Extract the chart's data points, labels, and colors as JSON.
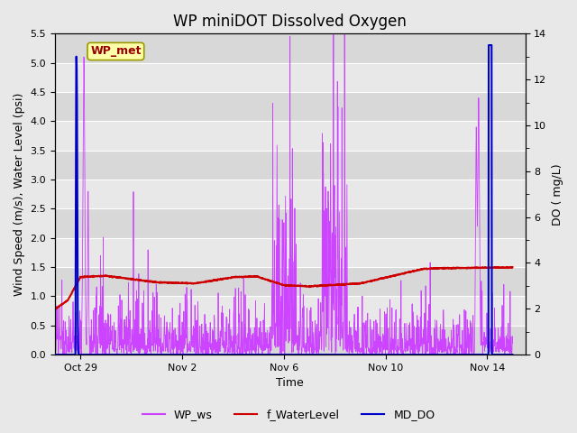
{
  "title": "WP miniDOT Dissolved Oxygen",
  "ylabel_left": "Wind Speed (m/s), Water Level (psi)",
  "ylabel_right": "DO ( mg/L)",
  "xlabel": "Time",
  "ylim_left": [
    0,
    5.5
  ],
  "ylim_right": [
    0,
    14
  ],
  "yticks_left": [
    0.0,
    0.5,
    1.0,
    1.5,
    2.0,
    2.5,
    3.0,
    3.5,
    4.0,
    4.5,
    5.0,
    5.5
  ],
  "yticks_right": [
    0,
    2,
    4,
    6,
    8,
    10,
    12,
    14
  ],
  "background_color": "#e8e8e8",
  "plot_bg_color": "#e8e8e8",
  "legend_items": [
    "WP_ws",
    "f_WaterLevel",
    "MD_DO"
  ],
  "legend_colors": [
    "#cc44ff",
    "#cc0000",
    "#0000cc"
  ],
  "annotation_text": "WP_met",
  "annotation_box_color": "#ffffaa",
  "annotation_text_color": "#990000",
  "wp_ws_color": "#cc44ff",
  "f_waterlevel_color": "#cc0000",
  "md_do_color": "#0000cc",
  "x_tick_labels": [
    "Oct 29",
    "Nov 2",
    "Nov 6",
    "Nov 10",
    "Nov 14"
  ],
  "x_tick_positions_days": [
    1,
    5,
    9,
    13,
    17
  ],
  "grid_color": "#ffffff",
  "grid_alpha": 1.0,
  "title_fontsize": 12,
  "axis_label_fontsize": 9,
  "tick_fontsize": 8,
  "fig_width": 6.4,
  "fig_height": 4.8,
  "dpi": 100,
  "xlim": [
    0,
    18.5
  ],
  "band_colors": [
    "#d8d8d8",
    "#e8e8e8"
  ]
}
